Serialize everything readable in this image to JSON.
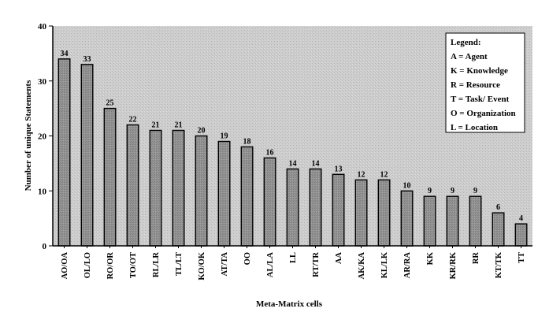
{
  "chart_data": {
    "type": "bar",
    "title": "",
    "xlabel": "Meta-Matrix cells",
    "ylabel": "Number of unique Statements",
    "ylim": [
      0,
      40
    ],
    "yticks": [
      0,
      10,
      20,
      30,
      40
    ],
    "grid": false,
    "legend_position": "top-right",
    "categories": [
      "AO/OA",
      "OL/LO",
      "RO/OR",
      "TO/OT",
      "RL/LR",
      "TL/LT",
      "KO/OK",
      "AT/TA",
      "OO",
      "AL/LA",
      "LL",
      "RT/TR",
      "AA",
      "AK/KA",
      "KL/LK",
      "AR/RA",
      "KK",
      "KR/RK",
      "RR",
      "KT/TK",
      "TT"
    ],
    "values": [
      34,
      33,
      25,
      22,
      21,
      21,
      20,
      19,
      18,
      16,
      14,
      14,
      13,
      12,
      12,
      10,
      9,
      9,
      9,
      6,
      4
    ],
    "legend": {
      "title": "Legend:",
      "entries": [
        "A = Agent",
        "K = Knowledge",
        "R = Resource",
        "T = Task/ Event",
        "O = Organization",
        "L = Location"
      ]
    },
    "colors": {
      "plot_background": "#c9c9c9",
      "bar_fill": "#8f8f8f",
      "bar_stroke": "#000000",
      "axis": "#000000"
    }
  }
}
